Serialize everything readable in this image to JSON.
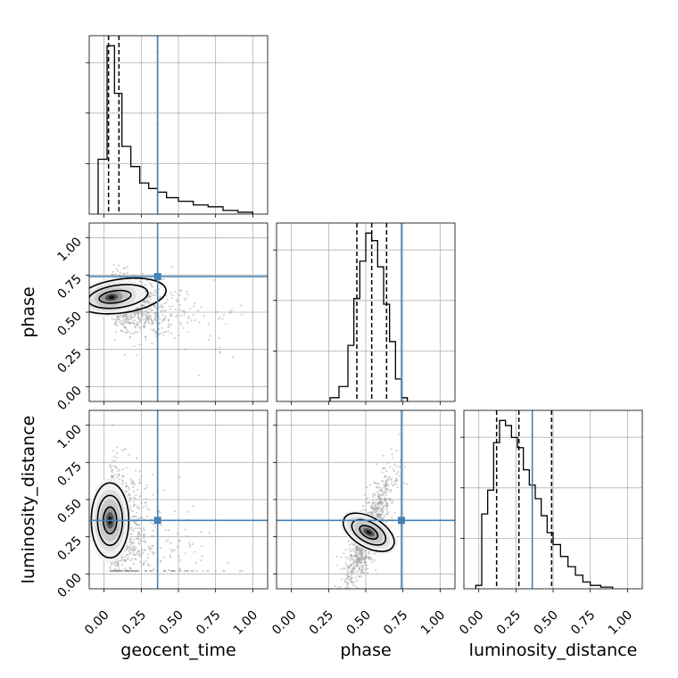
{
  "figure": {
    "axis_labels": [
      "geocent_time",
      "phase",
      "luminosity_distance"
    ],
    "tick_labels": [
      "0.00",
      "0.25",
      "0.50",
      "0.75",
      "1.00"
    ],
    "colors": {
      "truth": "#4682b4",
      "hist": "#000000",
      "grid": "#b0b0b0",
      "scatter": "#9a9a9a"
    }
  },
  "chart_data": {
    "type": "corner",
    "parameters": [
      "geocent_time",
      "phase",
      "luminosity_distance"
    ],
    "ticks": [
      0.0,
      0.25,
      0.5,
      0.75,
      1.0
    ],
    "axis_ranges": {
      "geocent_time": [
        -0.1,
        1.1
      ],
      "phase": [
        -0.1,
        1.1
      ],
      "luminosity_distance": [
        -0.1,
        1.1
      ]
    },
    "truths": {
      "geocent_time": 0.36,
      "phase": 0.74,
      "luminosity_distance": 0.36
    },
    "grid": true,
    "histograms": [
      {
        "parameter": "geocent_time",
        "bin_edges": [
          -0.04,
          0.02,
          0.07,
          0.12,
          0.18,
          0.24,
          0.3,
          0.36,
          0.42,
          0.5,
          0.6,
          0.7,
          0.8,
          0.9,
          1.0
        ],
        "counts": [
          30,
          92,
          66,
          37,
          26,
          17,
          14,
          12,
          9,
          7,
          5,
          4,
          2,
          1
        ],
        "quantiles": [
          0.03,
          0.1,
          0.36
        ]
      },
      {
        "parameter": "phase",
        "bin_edges": [
          0.26,
          0.32,
          0.38,
          0.42,
          0.46,
          0.5,
          0.54,
          0.58,
          0.62,
          0.66,
          0.7,
          0.74,
          0.78
        ],
        "counts": [
          2,
          8,
          30,
          55,
          75,
          90,
          86,
          72,
          52,
          32,
          12,
          2
        ],
        "quantiles": [
          0.44,
          0.54,
          0.64
        ]
      },
      {
        "parameter": "luminosity_distance",
        "bin_edges": [
          -0.02,
          0.02,
          0.06,
          0.1,
          0.14,
          0.18,
          0.22,
          0.26,
          0.3,
          0.34,
          0.38,
          0.42,
          0.46,
          0.5,
          0.55,
          0.6,
          0.65,
          0.7,
          0.75,
          0.82,
          0.9
        ],
        "counts": [
          2,
          44,
          58,
          86,
          99,
          96,
          89,
          83,
          70,
          61,
          53,
          43,
          33,
          26,
          19,
          13,
          8,
          4,
          2,
          1
        ],
        "quantiles": [
          0.12,
          0.27,
          0.49
        ]
      }
    ],
    "joint_distributions": [
      {
        "x": "geocent_time",
        "y": "phase",
        "peak": [
          0.05,
          0.6
        ],
        "spread": [
          0.16,
          0.09
        ]
      },
      {
        "x": "geocent_time",
        "y": "luminosity_distance",
        "peak": [
          0.04,
          0.36
        ],
        "spread": [
          0.1,
          0.2
        ]
      },
      {
        "x": "phase",
        "y": "luminosity_distance",
        "peak": [
          0.52,
          0.28
        ],
        "spread": [
          0.08,
          0.15
        ]
      }
    ]
  }
}
